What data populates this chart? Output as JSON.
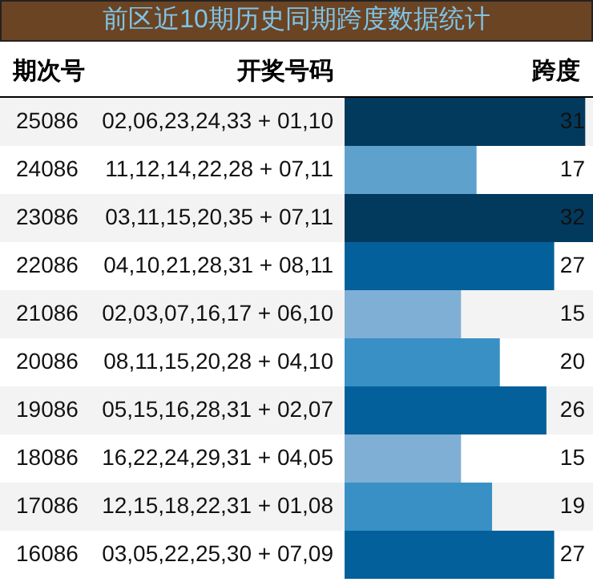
{
  "chart_data": {
    "type": "bar",
    "orientation": "horizontal",
    "title": "前区近10期历史同期跨度数据统计",
    "ylabel": "期次号",
    "xlabel": "跨度",
    "annotations": [
      "开奖号码",
      "02,06,23,24,33 + 01,10",
      "11,12,14,22,28 + 07,11",
      "03,11,15,20,35 + 07,11",
      "04,10,21,28,31 + 08,11",
      "02,03,07,16,17 + 06,10",
      "08,11,15,20,28 + 04,10",
      "05,15,16,28,31 + 02,07",
      "16,22,24,29,31 + 04,05",
      "12,15,18,22,31 + 01,08",
      "03,05,22,25,30 + 07,09"
    ],
    "categories": [
      "25086",
      "24086",
      "23086",
      "22086",
      "21086",
      "20086",
      "19086",
      "18086",
      "17086",
      "16086"
    ],
    "values": [
      31,
      17,
      32,
      27,
      15,
      20,
      26,
      15,
      19,
      27
    ],
    "colors": [
      "#023a5e",
      "#5fa1cd",
      "#023a5e",
      "#04609a",
      "#7fafd4",
      "#3990c5",
      "#04609a",
      "#7fafd4",
      "#3990c5",
      "#04609a"
    ],
    "data_labels": true
  }
}
